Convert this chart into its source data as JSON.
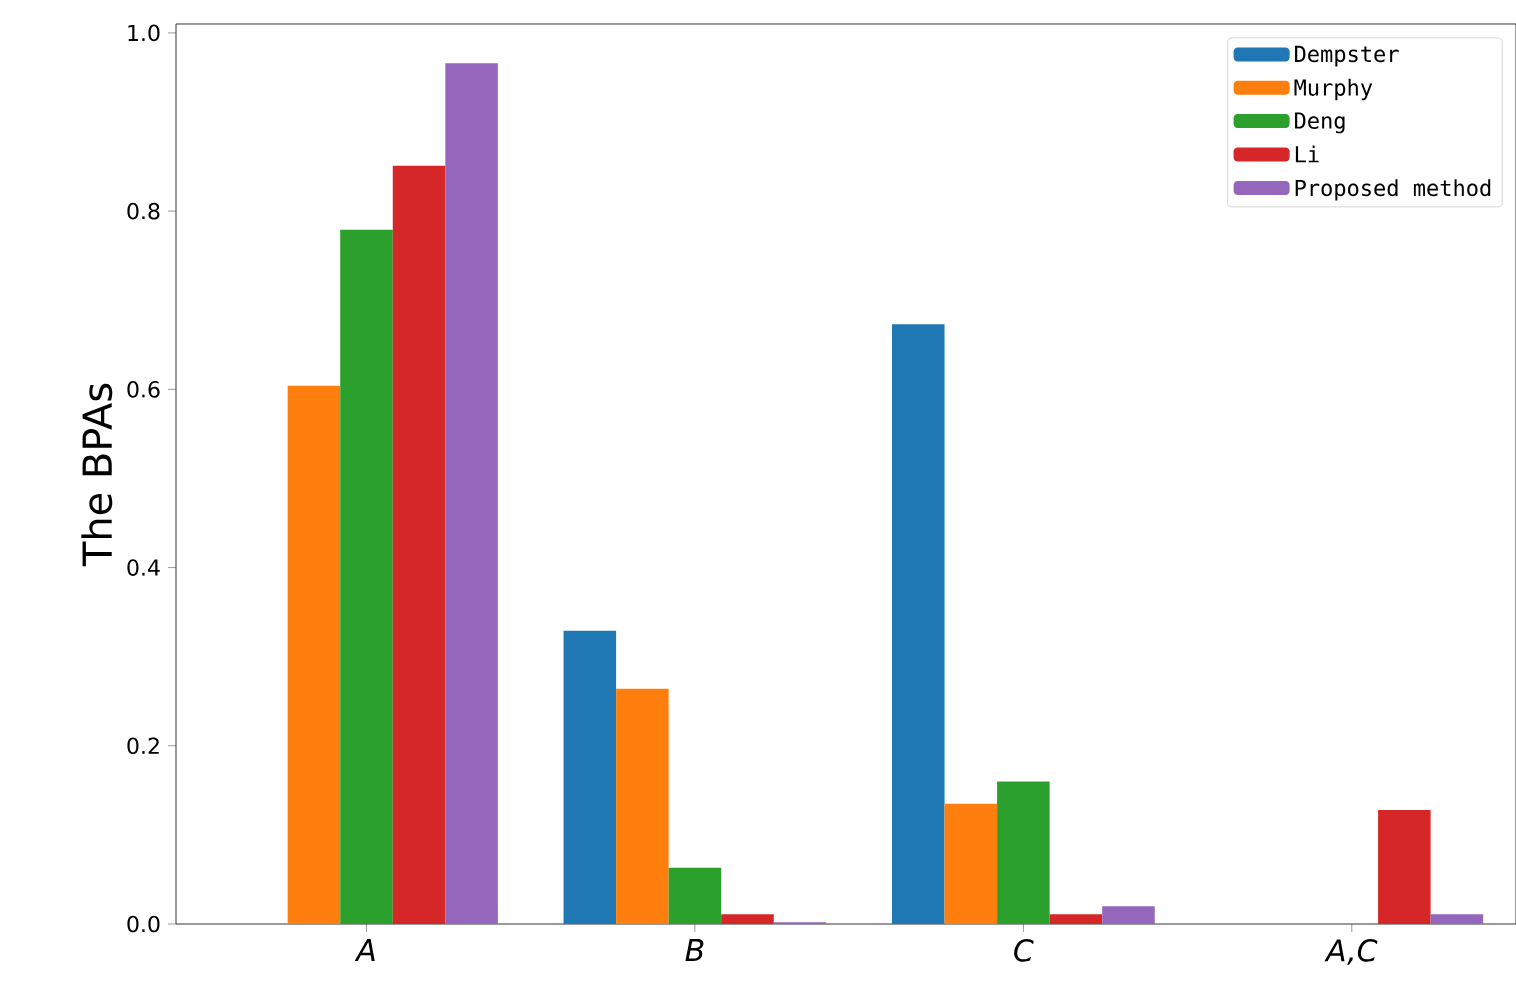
{
  "chart_data": {
    "type": "bar",
    "ylabel": "The BPAs",
    "categories": [
      "A",
      "B",
      "C",
      "A,C"
    ],
    "series": [
      {
        "name": "Dempster",
        "color": "#1f77b4",
        "values": [
          0,
          0.329,
          0.673,
          0
        ]
      },
      {
        "name": "Murphy",
        "color": "#ff7f0e",
        "values": [
          0.604,
          0.264,
          0.135,
          0
        ]
      },
      {
        "name": "Deng",
        "color": "#2ca02c",
        "values": [
          0.779,
          0.063,
          0.16,
          0
        ]
      },
      {
        "name": "Li",
        "color": "#d62728",
        "values": [
          0.851,
          0.011,
          0.011,
          0.128
        ]
      },
      {
        "name": "Proposed method",
        "color": "#9467bd",
        "values": [
          0.966,
          0.002,
          0.02,
          0.011
        ]
      }
    ],
    "ylim": [
      0,
      1.01
    ],
    "yticks": [
      {
        "value": 0,
        "label": "0.0"
      },
      {
        "value": 0.2,
        "label": "0.2"
      },
      {
        "value": 0.4,
        "label": "0.4"
      },
      {
        "value": 0.6,
        "label": "0.6"
      },
      {
        "value": 0.8,
        "label": "0.8"
      },
      {
        "value": 1.0,
        "label": "1.0"
      }
    ],
    "legend": "top right",
    "grid": false
  }
}
